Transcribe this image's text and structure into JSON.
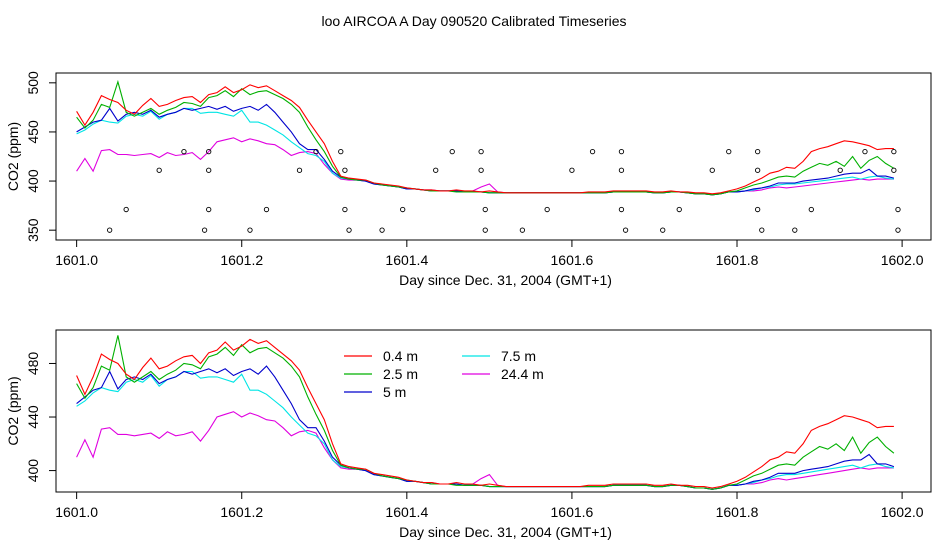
{
  "title": "loo AIRCOA A  Day 090520  Calibrated Timeseries",
  "colors": {
    "0.4 m": "#ff0000",
    "2.5 m": "#00b000",
    "5 m": "#0000cc",
    "7.5 m": "#00e5e5",
    "24.4 m": "#e000e0",
    "points": "#000000"
  },
  "chart_data": [
    {
      "type": "line",
      "xlabel": "Day since Dec. 31, 2004 (GMT+1)",
      "ylabel": "CO2 (ppm)",
      "xlim": [
        1601.0,
        1602.0
      ],
      "ylim": [
        340,
        510
      ],
      "xticks": [
        "1601.0",
        "1601.2",
        "1601.4",
        "1601.6",
        "1601.8",
        "1602.0"
      ],
      "yticks": [
        "350",
        "400",
        "450",
        "500"
      ],
      "legend": "none",
      "overlay_points": {
        "x": [
          1601.04,
          1601.06,
          1601.1,
          1601.13,
          1601.155,
          1601.16,
          1601.16,
          1601.16,
          1601.21,
          1601.23,
          1601.27,
          1601.29,
          1601.32,
          1601.325,
          1601.325,
          1601.33,
          1601.37,
          1601.395,
          1601.435,
          1601.455,
          1601.49,
          1601.49,
          1601.495,
          1601.495,
          1601.54,
          1601.57,
          1601.6,
          1601.625,
          1601.66,
          1601.66,
          1601.66,
          1601.665,
          1601.71,
          1601.73,
          1601.77,
          1601.79,
          1601.825,
          1601.825,
          1601.825,
          1601.83,
          1601.87,
          1601.89,
          1601.925,
          1601.955,
          1601.99,
          1601.99,
          1601.995,
          1601.995
        ],
        "y": [
          350,
          371,
          411,
          430,
          350,
          371,
          411,
          430,
          350,
          371,
          411,
          430,
          430,
          411,
          371,
          350,
          350,
          371,
          411,
          430,
          430,
          411,
          371,
          350,
          350,
          371,
          411,
          430,
          430,
          411,
          371,
          350,
          350,
          371,
          411,
          430,
          430,
          411,
          371,
          350,
          350,
          371,
          411,
          430,
          430,
          411,
          371,
          350
        ]
      }
    },
    {
      "type": "line",
      "xlabel": "Day since Dec. 31, 2004 (GMT+1)",
      "ylabel": "CO2 (ppm)",
      "xlim": [
        1601.0,
        1602.0
      ],
      "ylim": [
        384,
        505
      ],
      "xticks": [
        "1601.0",
        "1601.2",
        "1601.4",
        "1601.6",
        "1601.8",
        "1602.0"
      ],
      "yticks": [
        "400",
        "440",
        "480"
      ],
      "legend": "top-left",
      "legend_entries": [
        "0.4 m",
        "2.5 m",
        "5 m",
        "7.5 m",
        "24.4 m"
      ]
    }
  ],
  "series_x": [
    1601.0,
    1601.01,
    1601.02,
    1601.03,
    1601.04,
    1601.05,
    1601.06,
    1601.07,
    1601.08,
    1601.09,
    1601.1,
    1601.11,
    1601.12,
    1601.13,
    1601.14,
    1601.15,
    1601.16,
    1601.17,
    1601.18,
    1601.19,
    1601.2,
    1601.21,
    1601.22,
    1601.23,
    1601.24,
    1601.25,
    1601.26,
    1601.27,
    1601.28,
    1601.29,
    1601.3,
    1601.31,
    1601.32,
    1601.33,
    1601.34,
    1601.35,
    1601.36,
    1601.37,
    1601.38,
    1601.39,
    1601.4,
    1601.41,
    1601.42,
    1601.43,
    1601.44,
    1601.45,
    1601.46,
    1601.47,
    1601.48,
    1601.49,
    1601.5,
    1601.51,
    1601.52,
    1601.53,
    1601.54,
    1601.55,
    1601.56,
    1601.57,
    1601.58,
    1601.59,
    1601.6,
    1601.61,
    1601.62,
    1601.63,
    1601.64,
    1601.65,
    1601.66,
    1601.67,
    1601.68,
    1601.69,
    1601.7,
    1601.71,
    1601.72,
    1601.73,
    1601.74,
    1601.75,
    1601.76,
    1601.77,
    1601.78,
    1601.79,
    1601.8,
    1601.81,
    1601.82,
    1601.83,
    1601.84,
    1601.85,
    1601.86,
    1601.87,
    1601.88,
    1601.89,
    1601.9,
    1601.91,
    1601.92,
    1601.93,
    1601.94,
    1601.95,
    1601.96,
    1601.97,
    1601.98,
    1601.99
  ],
  "series": [
    {
      "name": "0.4 m",
      "values": [
        471,
        457,
        470,
        487,
        483,
        480,
        472,
        468,
        477,
        484,
        476,
        478,
        482,
        485,
        486,
        480,
        488,
        490,
        496,
        490,
        493,
        498,
        495,
        497,
        492,
        487,
        482,
        475,
        462,
        450,
        438,
        420,
        405,
        403,
        402,
        401,
        398,
        397,
        396,
        395,
        393,
        392,
        391,
        391,
        390,
        390,
        391,
        390,
        390,
        389,
        390,
        389,
        388,
        388,
        388,
        388,
        388,
        388,
        388,
        388,
        388,
        388,
        389,
        389,
        389,
        390,
        390,
        390,
        390,
        390,
        389,
        389,
        390,
        389,
        389,
        388,
        388,
        387,
        388,
        390,
        392,
        395,
        399,
        403,
        408,
        410,
        414,
        413,
        420,
        430,
        433,
        435,
        438,
        441,
        440,
        438,
        436,
        432,
        433,
        433
      ]
    },
    {
      "name": "2.5 m",
      "values": [
        465,
        454,
        462,
        478,
        475,
        501,
        470,
        466,
        470,
        474,
        468,
        472,
        475,
        480,
        479,
        476,
        485,
        487,
        492,
        486,
        494,
        488,
        491,
        492,
        488,
        484,
        478,
        470,
        455,
        442,
        430,
        415,
        404,
        402,
        401,
        401,
        398,
        396,
        395,
        394,
        393,
        392,
        391,
        390,
        390,
        390,
        389,
        389,
        389,
        389,
        388,
        388,
        388,
        388,
        388,
        388,
        388,
        388,
        388,
        388,
        388,
        388,
        388,
        388,
        388,
        389,
        389,
        389,
        389,
        389,
        388,
        388,
        389,
        389,
        388,
        387,
        387,
        386,
        387,
        389,
        390,
        393,
        396,
        398,
        401,
        404,
        405,
        404,
        410,
        414,
        418,
        416,
        420,
        415,
        425,
        413,
        421,
        425,
        418,
        413
      ]
    },
    {
      "name": "5 m",
      "values": [
        450,
        455,
        460,
        462,
        474,
        461,
        468,
        470,
        468,
        472,
        465,
        468,
        470,
        474,
        472,
        474,
        476,
        473,
        476,
        471,
        474,
        476,
        472,
        478,
        470,
        460,
        450,
        438,
        432,
        432,
        422,
        410,
        404,
        402,
        401,
        400,
        397,
        396,
        395,
        394,
        392,
        392,
        391,
        390,
        390,
        390,
        390,
        389,
        389,
        389,
        388,
        388,
        388,
        388,
        388,
        388,
        388,
        388,
        388,
        388,
        388,
        388,
        388,
        388,
        388,
        389,
        389,
        389,
        389,
        389,
        388,
        388,
        389,
        389,
        388,
        387,
        387,
        386,
        387,
        389,
        389,
        390,
        392,
        393,
        395,
        398,
        398,
        398,
        400,
        401,
        402,
        403,
        405,
        407,
        408,
        408,
        412,
        405,
        405,
        403
      ]
    },
    {
      "name": "7.5 m",
      "values": [
        448,
        452,
        458,
        462,
        460,
        459,
        466,
        468,
        466,
        471,
        463,
        468,
        470,
        474,
        474,
        469,
        470,
        470,
        468,
        466,
        472,
        460,
        460,
        457,
        452,
        447,
        440,
        434,
        428,
        426,
        420,
        408,
        403,
        402,
        401,
        400,
        397,
        396,
        395,
        394,
        392,
        392,
        391,
        390,
        390,
        390,
        390,
        389,
        389,
        389,
        388,
        388,
        388,
        388,
        388,
        388,
        388,
        388,
        388,
        388,
        388,
        388,
        388,
        388,
        388,
        389,
        389,
        389,
        389,
        389,
        388,
        388,
        389,
        389,
        388,
        387,
        387,
        386,
        387,
        389,
        389,
        390,
        391,
        393,
        394,
        396,
        397,
        397,
        398,
        399,
        400,
        401,
        402,
        403,
        404,
        402,
        404,
        405,
        403,
        402
      ]
    },
    {
      "name": "24.4 m",
      "values": [
        410,
        423,
        410,
        431,
        432,
        427,
        427,
        426,
        427,
        428,
        424,
        429,
        426,
        427,
        429,
        422,
        430,
        440,
        442,
        444,
        440,
        443,
        441,
        438,
        437,
        432,
        426,
        429,
        430,
        428,
        417,
        408,
        402,
        401,
        401,
        400,
        397,
        396,
        395,
        394,
        392,
        392,
        391,
        391,
        390,
        390,
        390,
        389,
        390,
        394,
        397,
        389,
        388,
        388,
        388,
        388,
        388,
        388,
        388,
        388,
        388,
        388,
        388,
        388,
        388,
        389,
        389,
        389,
        389,
        389,
        388,
        388,
        389,
        389,
        388,
        387,
        387,
        386,
        387,
        389,
        389,
        390,
        390,
        391,
        393,
        394,
        393,
        394,
        395,
        396,
        397,
        398,
        399,
        400,
        401,
        402,
        401,
        402,
        402,
        402
      ]
    }
  ]
}
